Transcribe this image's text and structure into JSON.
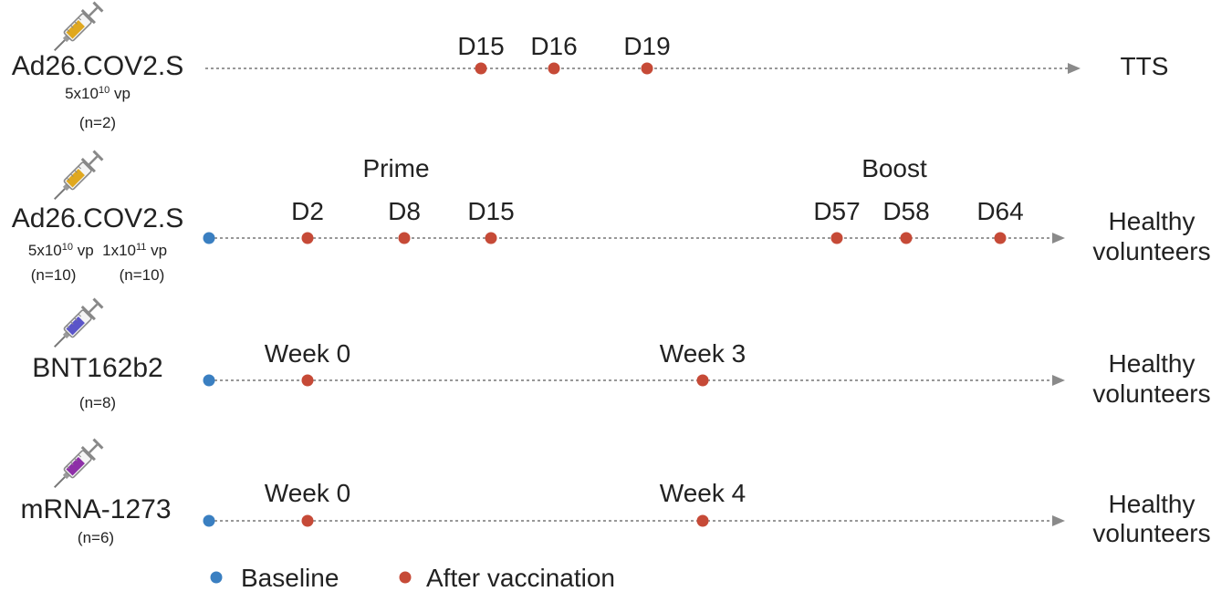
{
  "colors": {
    "baseline": "#3a7fc1",
    "after": "#c64a37",
    "line": "#8a8a8a",
    "text": "#222222"
  },
  "rows": [
    {
      "vaccine": "Ad26.COV2.S",
      "syringe_color": "#e0a81e",
      "dose_lines": [
        {
          "parts": [
            {
              "t": "5x10"
            },
            {
              "t": "10",
              "sup": true
            },
            {
              "t": " vp"
            }
          ]
        },
        {
          "parts": [
            {
              "t": "(n=2)"
            }
          ]
        }
      ],
      "has_baseline": false,
      "phase_labels": [],
      "timepoints": [
        "D15",
        "D16",
        "D19"
      ],
      "endpoint": [
        "TTS"
      ]
    },
    {
      "vaccine": "Ad26.COV2.S",
      "syringe_color": "#e0a81e",
      "dose_lines": [
        {
          "parts": [
            {
              "t": "5x10"
            },
            {
              "t": "10",
              "sup": true
            },
            {
              "t": " vp  1x10"
            },
            {
              "t": "11",
              "sup": true
            },
            {
              "t": " vp"
            }
          ]
        },
        {
          "parts": [
            {
              "t": "(n=10)          (n=10)"
            }
          ]
        }
      ],
      "has_baseline": true,
      "phase_labels": [
        "Prime",
        "Boost"
      ],
      "timepoints": [
        "D2",
        "D8",
        "D15",
        "D57",
        "D58",
        "D64"
      ],
      "endpoint": [
        "Healthy",
        "volunteers"
      ]
    },
    {
      "vaccine": "BNT162b2",
      "syringe_color": "#5b55c9",
      "dose_lines": [
        {
          "parts": [
            {
              "t": "(n=8)"
            }
          ]
        }
      ],
      "has_baseline": true,
      "phase_labels": [],
      "timepoints": [
        "Week 0",
        "Week 3"
      ],
      "endpoint": [
        "Healthy",
        "volunteers"
      ]
    },
    {
      "vaccine": "mRNA-1273",
      "syringe_color": "#8e2fa8",
      "dose_lines": [
        {
          "parts": [
            {
              "t": "(n=6)"
            }
          ]
        }
      ],
      "has_baseline": true,
      "phase_labels": [],
      "timepoints": [
        "Week 0",
        "Week 4"
      ],
      "endpoint": [
        "Healthy",
        "volunteers"
      ]
    }
  ],
  "legend": {
    "baseline_label": "Baseline",
    "after_label": "After vaccination"
  }
}
